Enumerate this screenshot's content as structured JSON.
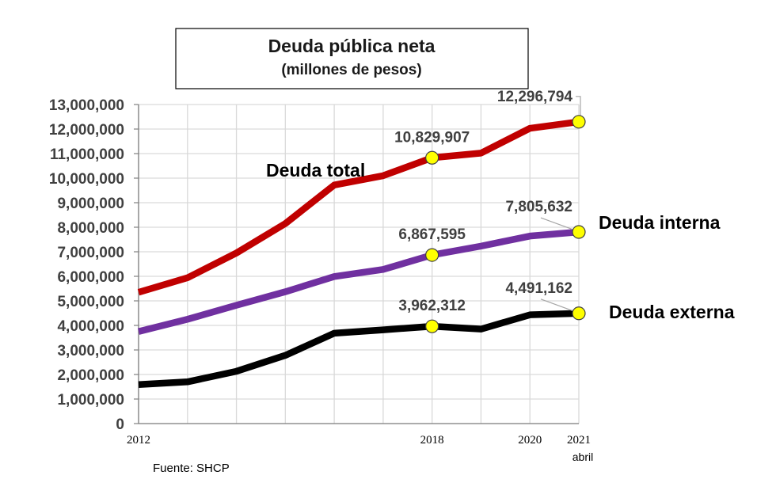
{
  "chart_data": {
    "type": "line",
    "title": "Deuda pública neta",
    "subtitle": "(millones de pesos)",
    "source": "Fuente: SHCP",
    "x": [
      2012,
      2013,
      2014,
      2015,
      2016,
      2017,
      2018,
      2019,
      2020,
      2021
    ],
    "x_tick_labels": [
      {
        "x": 2012,
        "label": "2012",
        "sub": ""
      },
      {
        "x": 2018,
        "label": "2018",
        "sub": ""
      },
      {
        "x": 2020,
        "label": "2020",
        "sub": ""
      },
      {
        "x": 2021,
        "label": "2021",
        "sub": "abril"
      }
    ],
    "ylim": [
      0,
      13000000
    ],
    "ytick_step": 1000000,
    "grid": true,
    "series": [
      {
        "name": "Deuda total",
        "color": "#c00000",
        "values": [
          5350000,
          5940000,
          6950000,
          8150000,
          9720000,
          10100000,
          10829907,
          11020000,
          12030000,
          12296794
        ]
      },
      {
        "name": "Deuda interna",
        "color": "#7030a0",
        "values": [
          3750000,
          4250000,
          4820000,
          5370000,
          5990000,
          6280000,
          6867595,
          7230000,
          7640000,
          7805632
        ]
      },
      {
        "name": "Deuda externa",
        "color": "#000000",
        "values": [
          1590000,
          1700000,
          2130000,
          2780000,
          3680000,
          3820000,
          3962312,
          3850000,
          4430000,
          4491162
        ]
      }
    ],
    "annotations": [
      {
        "series": 0,
        "x": 2018,
        "text": "10,829,907"
      },
      {
        "series": 0,
        "x": 2021,
        "text": "12,296,794"
      },
      {
        "series": 1,
        "x": 2018,
        "text": "6,867,595"
      },
      {
        "series": 1,
        "x": 2021,
        "text": "7,805,632"
      },
      {
        "series": 2,
        "x": 2018,
        "text": "3,962,312"
      },
      {
        "series": 2,
        "x": 2021,
        "text": "4,491,162"
      }
    ],
    "marker_color": "#ffff00"
  }
}
